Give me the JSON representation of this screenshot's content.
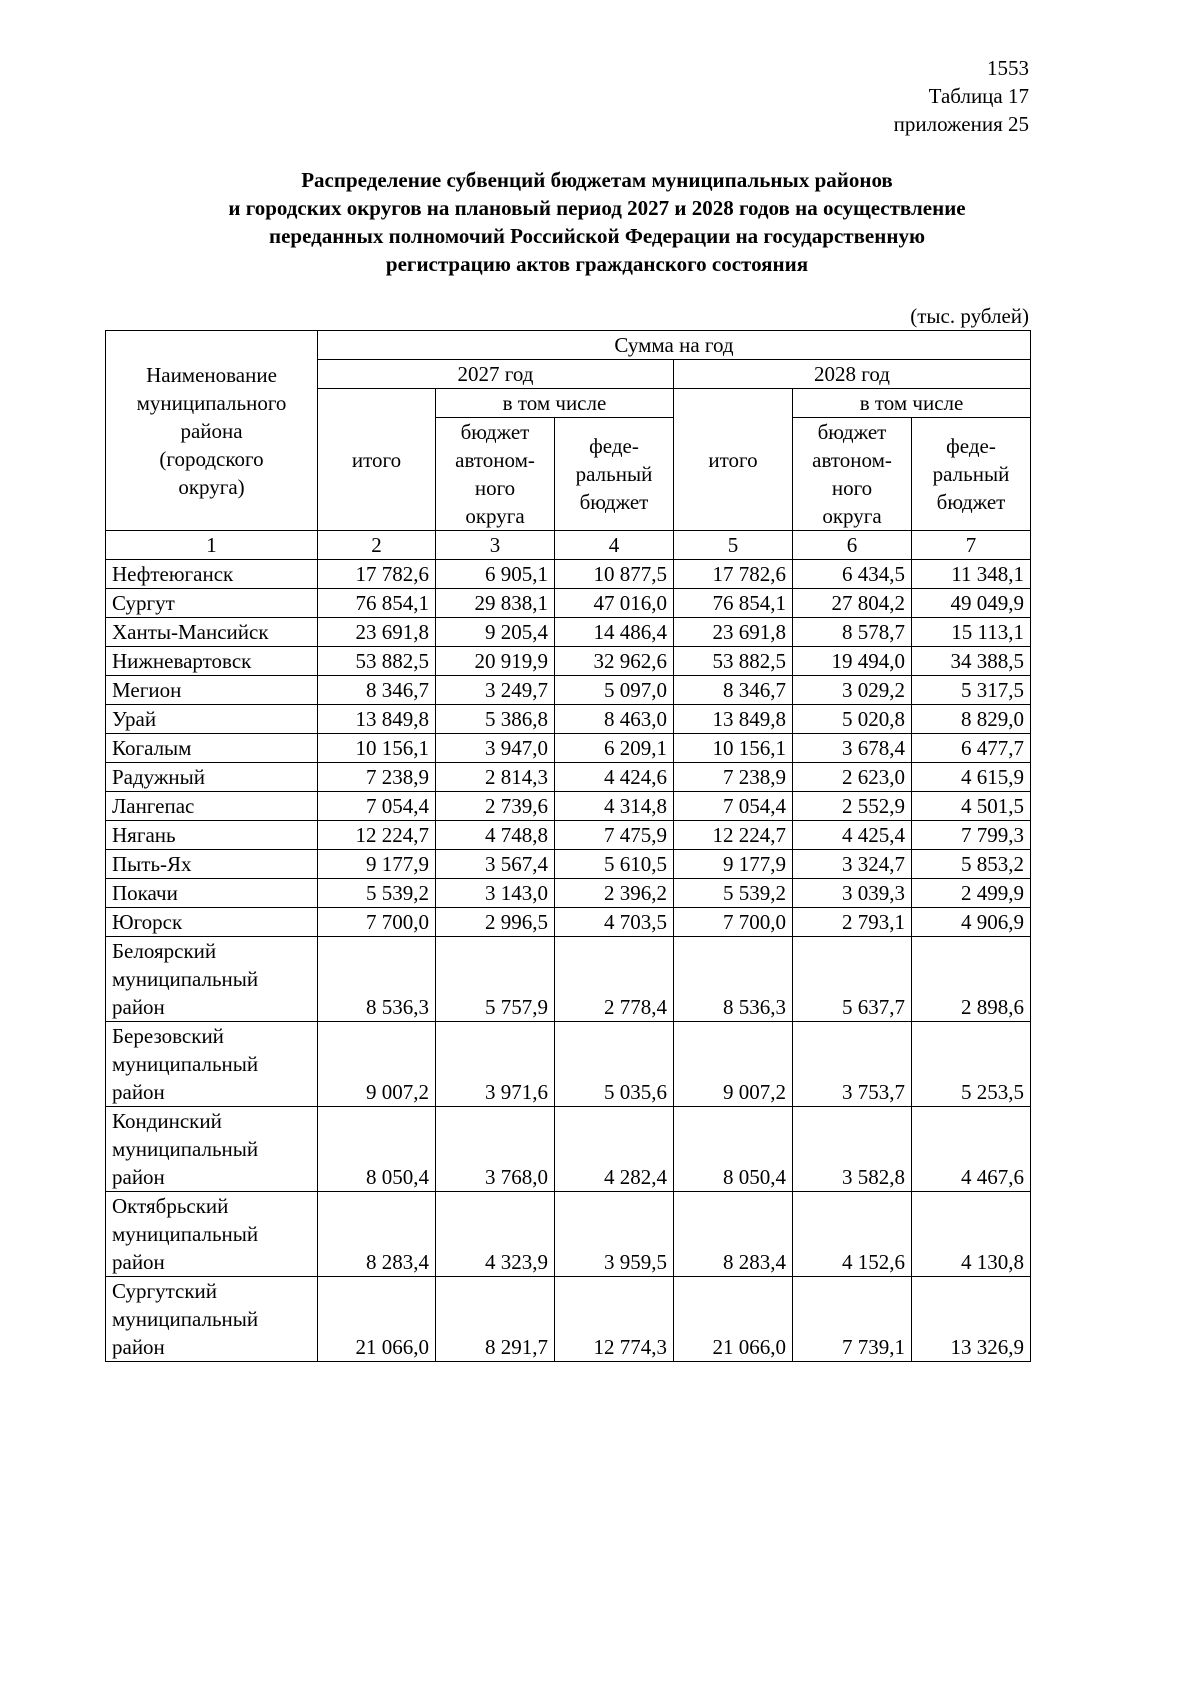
{
  "page_number": "1553",
  "table_label": "Таблица 17",
  "appendix_label": "приложения 25",
  "title_lines": [
    "Распределение субвенций бюджетам муниципальных районов",
    "и городских округов на плановый период 2027 и 2028 годов на осуществление",
    "переданных полномочий Российской Федерации на государственную",
    "регистрацию актов гражданского состояния"
  ],
  "units": "(тыс. рублей)",
  "header": {
    "name_col": [
      "Наименование",
      "муниципального",
      "района",
      "(городского",
      "округа)"
    ],
    "sum_per_year": "Сумма на год",
    "year1": "2027 год",
    "year2": "2028 год",
    "including": "в том числе",
    "total": "итого",
    "ao_budget": [
      "бюджет",
      "автоном-",
      "ного",
      "округа"
    ],
    "fed_budget": [
      "феде-",
      "ральный",
      "бюджет"
    ],
    "col_numbers": [
      "1",
      "2",
      "3",
      "4",
      "5",
      "6",
      "7"
    ]
  },
  "rows": [
    {
      "name": [
        "Нефтеюганск"
      ],
      "v": [
        "17 782,6",
        "6 905,1",
        "10 877,5",
        "17 782,6",
        "6 434,5",
        "11 348,1"
      ]
    },
    {
      "name": [
        "Сургут"
      ],
      "v": [
        "76 854,1",
        "29 838,1",
        "47 016,0",
        "76 854,1",
        "27 804,2",
        "49 049,9"
      ]
    },
    {
      "name": [
        "Ханты-Мансийск"
      ],
      "v": [
        "23 691,8",
        "9 205,4",
        "14 486,4",
        "23 691,8",
        "8 578,7",
        "15 113,1"
      ]
    },
    {
      "name": [
        "Нижневартовск"
      ],
      "v": [
        "53 882,5",
        "20 919,9",
        "32 962,6",
        "53 882,5",
        "19 494,0",
        "34 388,5"
      ]
    },
    {
      "name": [
        "Мегион"
      ],
      "v": [
        "8 346,7",
        "3 249,7",
        "5 097,0",
        "8 346,7",
        "3 029,2",
        "5 317,5"
      ]
    },
    {
      "name": [
        "Урай"
      ],
      "v": [
        "13 849,8",
        "5 386,8",
        "8 463,0",
        "13 849,8",
        "5 020,8",
        "8 829,0"
      ]
    },
    {
      "name": [
        "Когалым"
      ],
      "v": [
        "10 156,1",
        "3 947,0",
        "6 209,1",
        "10 156,1",
        "3 678,4",
        "6 477,7"
      ]
    },
    {
      "name": [
        "Радужный"
      ],
      "v": [
        "7 238,9",
        "2 814,3",
        "4 424,6",
        "7 238,9",
        "2 623,0",
        "4 615,9"
      ]
    },
    {
      "name": [
        "Лангепас"
      ],
      "v": [
        "7 054,4",
        "2 739,6",
        "4 314,8",
        "7 054,4",
        "2 552,9",
        "4 501,5"
      ]
    },
    {
      "name": [
        "Нягань"
      ],
      "v": [
        "12 224,7",
        "4 748,8",
        "7 475,9",
        "12 224,7",
        "4 425,4",
        "7 799,3"
      ]
    },
    {
      "name": [
        "Пыть-Ях"
      ],
      "v": [
        "9 177,9",
        "3 567,4",
        "5 610,5",
        "9 177,9",
        "3 324,7",
        "5 853,2"
      ]
    },
    {
      "name": [
        "Покачи"
      ],
      "v": [
        "5 539,2",
        "3 143,0",
        "2 396,2",
        "5 539,2",
        "3 039,3",
        "2 499,9"
      ]
    },
    {
      "name": [
        "Югорск"
      ],
      "v": [
        "7 700,0",
        "2 996,5",
        "4 703,5",
        "7 700,0",
        "2 793,1",
        "4 906,9"
      ]
    },
    {
      "name": [
        "Белоярский",
        "муниципальный",
        "район"
      ],
      "v": [
        "8 536,3",
        "5 757,9",
        "2 778,4",
        "8 536,3",
        "5 637,7",
        "2 898,6"
      ]
    },
    {
      "name": [
        "Березовский",
        "муниципальный",
        "район"
      ],
      "v": [
        "9 007,2",
        "3 971,6",
        "5 035,6",
        "9 007,2",
        "3 753,7",
        "5 253,5"
      ]
    },
    {
      "name": [
        "Кондинский",
        "муниципальный",
        "район"
      ],
      "v": [
        "8 050,4",
        "3 768,0",
        "4 282,4",
        "8 050,4",
        "3 582,8",
        "4 467,6"
      ]
    },
    {
      "name": [
        "Октябрьский",
        "муниципальный",
        "район"
      ],
      "v": [
        "8 283,4",
        "4 323,9",
        "3 959,5",
        "8 283,4",
        "4 152,6",
        "4 130,8"
      ]
    },
    {
      "name": [
        "Сургутский",
        "муниципальный",
        "район"
      ],
      "v": [
        "21 066,0",
        "8 291,7",
        "12 774,3",
        "21 066,0",
        "7 739,1",
        "13 326,9"
      ]
    }
  ]
}
